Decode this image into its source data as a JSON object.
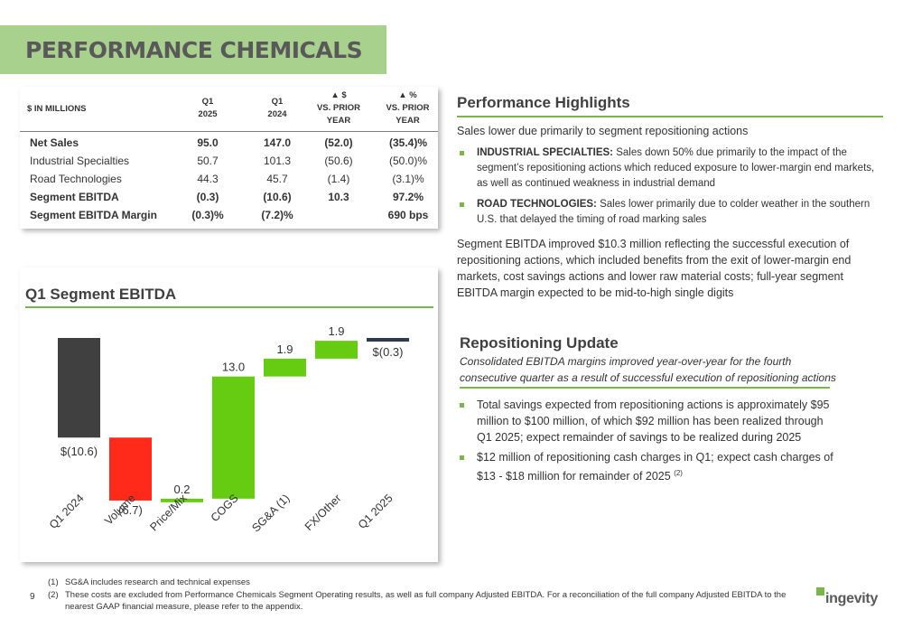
{
  "title": "PERFORMANCE CHEMICALS",
  "table": {
    "header_label": "$ IN MILLIONS",
    "col1": [
      "Q1",
      "2025"
    ],
    "col2": [
      "Q1",
      "2024"
    ],
    "col3": [
      "▲ $",
      "VS. PRIOR",
      "YEAR"
    ],
    "col4": [
      "▲ %",
      "VS. PRIOR",
      "YEAR"
    ],
    "rows": [
      {
        "label": "Net Sales",
        "c1": "95.0",
        "c2": "147.0",
        "c3": "(52.0)",
        "c4": "(35.4)%"
      },
      {
        "label": "Industrial Specialties",
        "c1": "50.7",
        "c2": "101.3",
        "c3": "(50.6)",
        "c4": "(50.0)%"
      },
      {
        "label": "Road Technologies",
        "c1": "44.3",
        "c2": "45.7",
        "c3": "(1.4)",
        "c4": "(3.1)%"
      },
      {
        "label": "Segment EBITDA",
        "c1": "(0.3)",
        "c2": "(10.6)",
        "c3": "10.3",
        "c4": "97.2%"
      },
      {
        "label": "Segment EBITDA Margin",
        "c1": "(0.3)%",
        "c2": "(7.2)%",
        "c3": "",
        "c4": "690 bps"
      }
    ]
  },
  "chart_title": "Q1 Segment EBITDA",
  "chart_data": {
    "type": "bar",
    "subtype": "waterfall",
    "title": "Q1 Segment EBITDA",
    "categories": [
      "Q1 2024",
      "Volume",
      "Price/Mix",
      "COGS",
      "SG&A (1)",
      "FX/Other",
      "Q1 2025"
    ],
    "values": [
      -10.6,
      -6.7,
      0.2,
      13.0,
      1.9,
      1.9,
      -0.3
    ],
    "labels": [
      "$(10.6)",
      "(6.7)",
      "0.2",
      "13.0",
      "1.9",
      "1.9",
      "$(0.3)"
    ],
    "colors": {
      "total": "#404040",
      "negative": "#ff2a1a",
      "positive": "#66cc11",
      "end": "#2f3a4f"
    }
  },
  "highlights": {
    "title": "Performance Highlights",
    "intro": "Sales lower due primarily to segment repositioning actions",
    "bullet1_head": "INDUSTRIAL SPECIALTIES:",
    "bullet1_text": " Sales down 50% due primarily to the impact of the segment’s repositioning actions which reduced exposure to lower-margin end markets, as well as continued weakness in industrial demand",
    "bullet2_head": "ROAD TECHNOLOGIES:",
    "bullet2_text": " Sales lower primarily due to colder weather in the southern U.S. that delayed the timing of road marking sales",
    "ebitda_text": "Segment EBITDA improved $10.3 million reflecting the successful execution of repositioning actions, which included benefits from the exit of lower-margin end markets, cost savings actions and lower raw material costs; full-year segment EBITDA margin expected to be mid-to-high single digits"
  },
  "repositioning": {
    "title": "Repositioning Update",
    "subtitle": "Consolidated EBITDA margins improved year-over-year for the fourth consecutive quarter as a result of successful execution of repositioning actions",
    "bullet1": "Total savings expected from repositioning actions is approximately $95 million to $100 million, of which $92 million has been realized through Q1 2025; expect remainder of savings to be realized during 2025",
    "bullet2": "$12 million of repositioning cash charges in Q1; expect cash charges of $13 - $18 million for remainder of 2025 ",
    "bullet2_sup": "(2)"
  },
  "footnotes": [
    {
      "num": "(1)",
      "text": "SG&A includes research and technical expenses"
    },
    {
      "num": "(2)",
      "text": "These costs are excluded from Performance Chemicals Segment Operating results, as well as full company Adjusted EBITDA. For a reconciliation of the full company Adjusted EBITDA to the nearest GAAP financial measure, please refer to the appendix."
    }
  ],
  "page_number": "9",
  "logo_text": "ingevity"
}
